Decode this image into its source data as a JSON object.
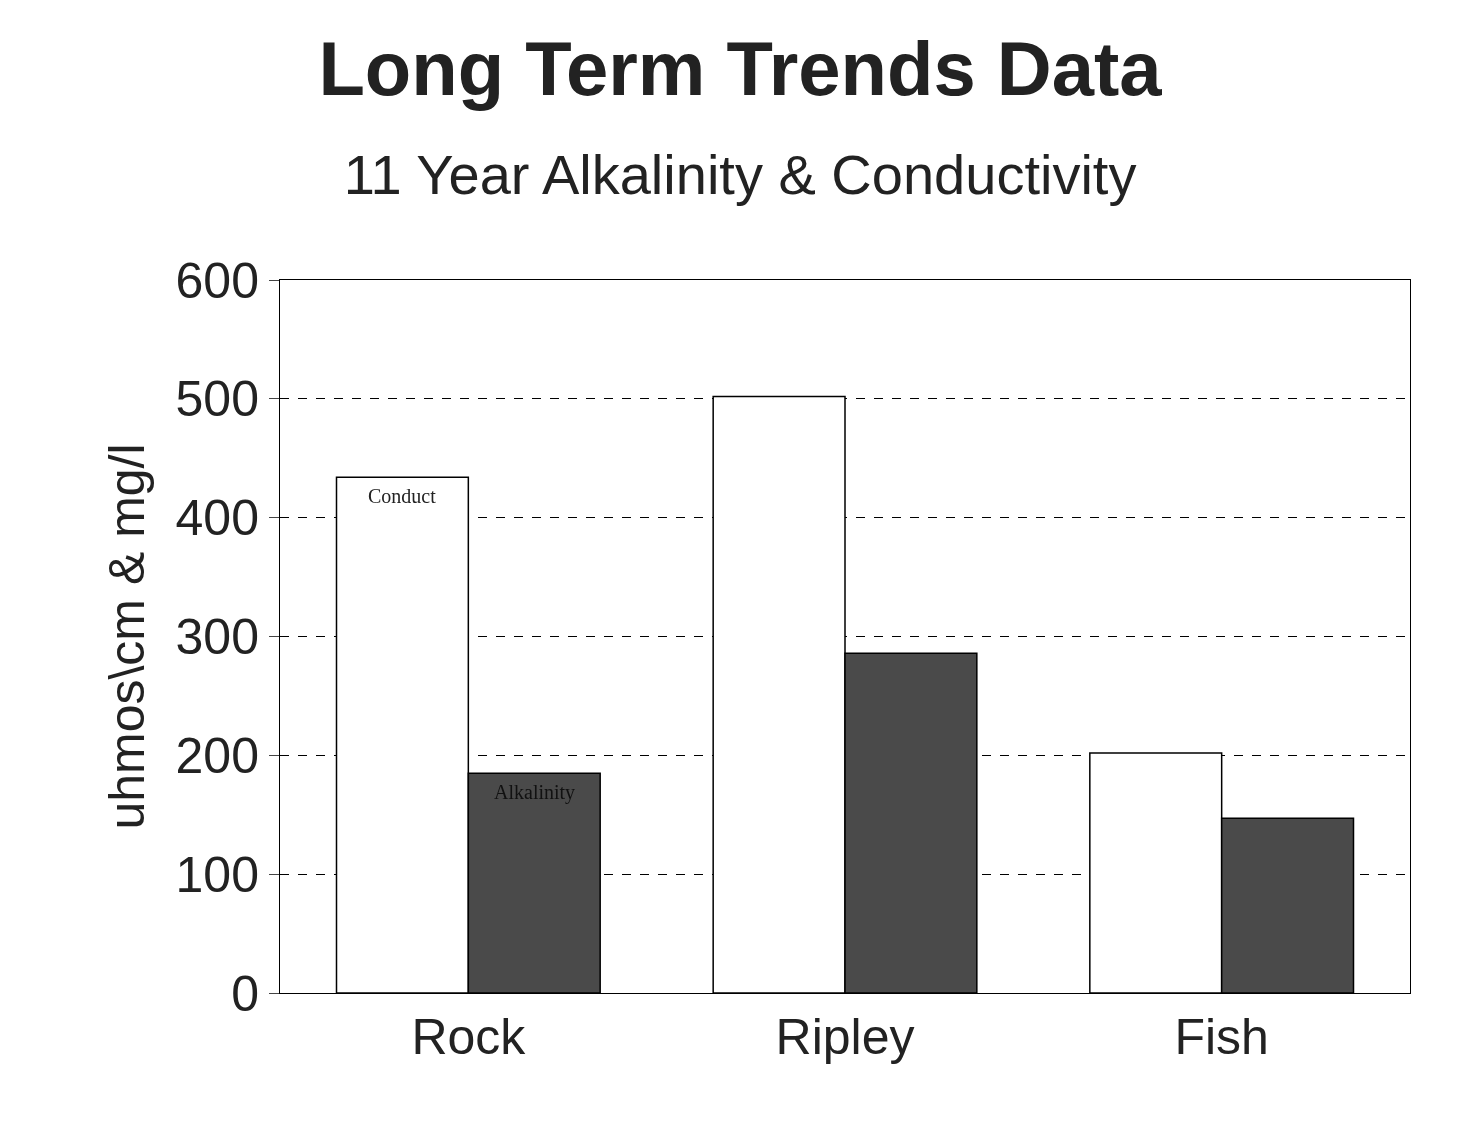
{
  "chart_data": {
    "type": "bar",
    "title": "Long Term Trends Data",
    "subtitle": "11 Year Alkalinity & Conductivity",
    "ylabel": "uhmos\\cm & mg/l",
    "categories": [
      "Rock",
      "Ripley",
      "Fish"
    ],
    "series": [
      {
        "name": "Conduct",
        "color": "#ffffff",
        "values": [
          434,
          502,
          202
        ]
      },
      {
        "name": "Alkalinity",
        "color": "#4a4a4a",
        "values": [
          185,
          286,
          147
        ]
      }
    ],
    "ylim": [
      0,
      600
    ],
    "yticks": [
      0,
      100,
      200,
      300,
      400,
      500,
      600
    ],
    "grid": "y",
    "legend": false
  }
}
